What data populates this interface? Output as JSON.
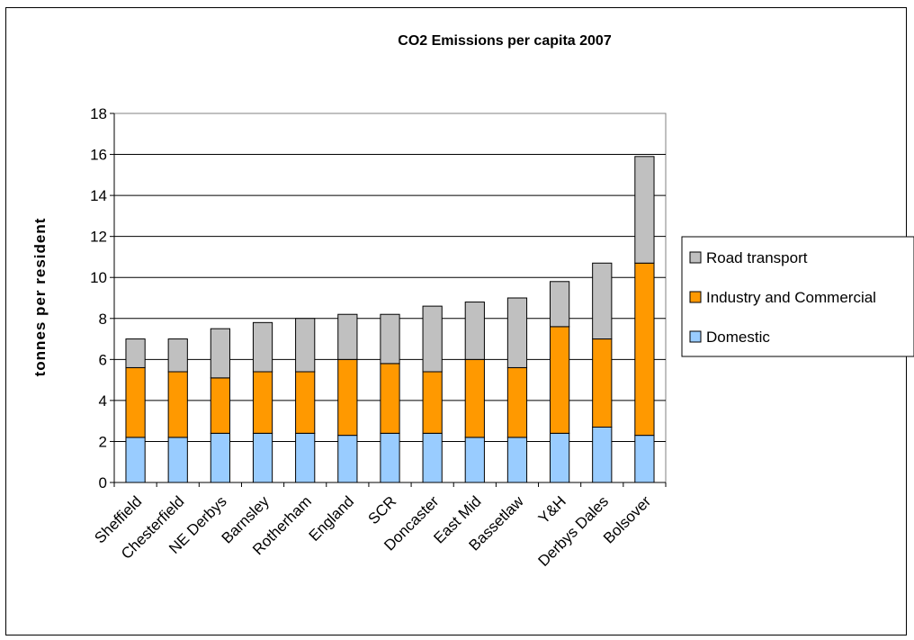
{
  "chart_data": {
    "type": "bar",
    "stacked": true,
    "title": "CO2 Emissions per capita 2007",
    "xlabel": "",
    "ylabel": "tonnes per resident",
    "ylim": [
      0,
      18
    ],
    "yticks": [
      0,
      2,
      4,
      6,
      8,
      10,
      12,
      14,
      16,
      18
    ],
    "grid": true,
    "legend_position": "right",
    "categories": [
      "Sheffield",
      "Chesterfield",
      "NE Derbys",
      "Barnsley",
      "Rotherham",
      "England",
      "SCR",
      "Doncaster",
      "East Mid",
      "Bassetlaw",
      "Y&H",
      "Derbys Dales",
      "Bolsover"
    ],
    "series": [
      {
        "name": "Domestic",
        "color": "#99ccff",
        "values": [
          2.2,
          2.2,
          2.4,
          2.4,
          2.4,
          2.3,
          2.4,
          2.4,
          2.2,
          2.2,
          2.4,
          2.7,
          2.3
        ]
      },
      {
        "name": "Industry and Commercial",
        "color": "#ff9900",
        "values": [
          3.4,
          3.2,
          2.7,
          3.0,
          3.0,
          3.7,
          3.4,
          3.0,
          3.8,
          3.4,
          5.2,
          4.3,
          8.4
        ]
      },
      {
        "name": "Road transport",
        "color": "#c0c0c0",
        "values": [
          1.4,
          1.6,
          2.4,
          2.4,
          2.6,
          2.2,
          2.4,
          3.2,
          2.8,
          3.4,
          2.2,
          3.7,
          5.2
        ]
      }
    ],
    "legend_order": [
      "Road transport",
      "Industry and Commercial",
      "Domestic"
    ]
  }
}
